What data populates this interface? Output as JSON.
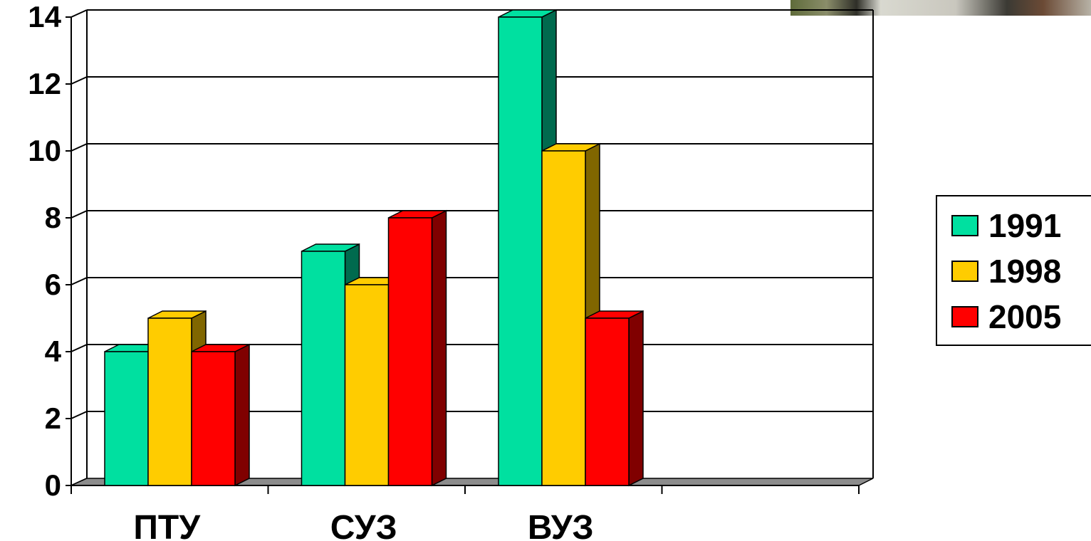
{
  "chart_data": {
    "type": "bar",
    "categories": [
      "ПТУ",
      "СУЗ",
      "ВУЗ",
      ""
    ],
    "series": [
      {
        "name": "1991",
        "values": [
          4,
          7,
          14,
          null
        ],
        "color": "#00E0A0",
        "side_color": "#006A4E"
      },
      {
        "name": "1998",
        "values": [
          5,
          6,
          10,
          null
        ],
        "color": "#FFCC00",
        "side_color": "#806600"
      },
      {
        "name": "2005",
        "values": [
          4,
          8,
          5,
          null
        ],
        "color": "#FF0000",
        "side_color": "#800000"
      }
    ],
    "yticks": [
      "0",
      "2",
      "4",
      "6",
      "8",
      "10",
      "12",
      "14"
    ],
    "ylim": [
      0,
      14
    ],
    "grid": true,
    "three_d": true,
    "legend_position": "right"
  }
}
